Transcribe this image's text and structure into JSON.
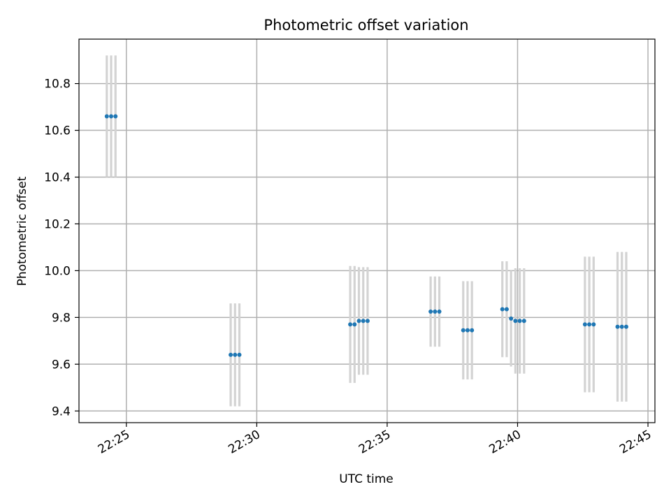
{
  "chart_data": {
    "type": "scatter",
    "title": "Photometric offset variation",
    "xlabel": "UTC time",
    "ylabel": "Photometric offset",
    "x_ticks": [
      "22:25",
      "22:30",
      "22:35",
      "22:40",
      "22:45"
    ],
    "y_ticks": [
      "9.4",
      "9.6",
      "9.8",
      "10.0",
      "10.2",
      "10.4",
      "10.6",
      "10.8"
    ],
    "xlim": [
      "22:23:11",
      "22:45:16"
    ],
    "ylim": [
      9.35,
      10.99
    ],
    "grid": true,
    "colors": {
      "point": "#1f77b4",
      "error_bar": "#d3d3d3",
      "grid": "#b0b0b0"
    },
    "series": [
      {
        "points": [
          {
            "x": "22:24:15",
            "y": 10.66,
            "err": 0.26
          },
          {
            "x": "22:24:25",
            "y": 10.66,
            "err": 0.26
          },
          {
            "x": "22:24:35",
            "y": 10.66,
            "err": 0.26
          },
          {
            "x": "22:29:00",
            "y": 9.64,
            "err": 0.22
          },
          {
            "x": "22:29:10",
            "y": 9.64,
            "err": 0.22
          },
          {
            "x": "22:29:20",
            "y": 9.64,
            "err": 0.22
          },
          {
            "x": "22:33:35",
            "y": 9.77,
            "err": 0.25
          },
          {
            "x": "22:33:45",
            "y": 9.77,
            "err": 0.25
          },
          {
            "x": "22:33:55",
            "y": 9.785,
            "err": 0.23
          },
          {
            "x": "22:34:05",
            "y": 9.785,
            "err": 0.23
          },
          {
            "x": "22:34:15",
            "y": 9.785,
            "err": 0.23
          },
          {
            "x": "22:36:40",
            "y": 9.825,
            "err": 0.15
          },
          {
            "x": "22:36:50",
            "y": 9.825,
            "err": 0.15
          },
          {
            "x": "22:37:00",
            "y": 9.825,
            "err": 0.15
          },
          {
            "x": "22:37:55",
            "y": 9.745,
            "err": 0.21
          },
          {
            "x": "22:38:05",
            "y": 9.745,
            "err": 0.21
          },
          {
            "x": "22:38:15",
            "y": 9.745,
            "err": 0.21
          },
          {
            "x": "22:39:25",
            "y": 9.835,
            "err": 0.205
          },
          {
            "x": "22:39:35",
            "y": 9.835,
            "err": 0.205
          },
          {
            "x": "22:39:45",
            "y": 9.795,
            "err": 0.205
          },
          {
            "x": "22:39:55",
            "y": 9.785,
            "err": 0.225
          },
          {
            "x": "22:40:05",
            "y": 9.785,
            "err": 0.225
          },
          {
            "x": "22:40:15",
            "y": 9.785,
            "err": 0.225
          },
          {
            "x": "22:42:35",
            "y": 9.77,
            "err": 0.29
          },
          {
            "x": "22:42:45",
            "y": 9.77,
            "err": 0.29
          },
          {
            "x": "22:42:55",
            "y": 9.77,
            "err": 0.29
          },
          {
            "x": "22:43:50",
            "y": 9.76,
            "err": 0.32
          },
          {
            "x": "22:44:00",
            "y": 9.76,
            "err": 0.32
          },
          {
            "x": "22:44:10",
            "y": 9.76,
            "err": 0.32
          }
        ]
      }
    ]
  }
}
